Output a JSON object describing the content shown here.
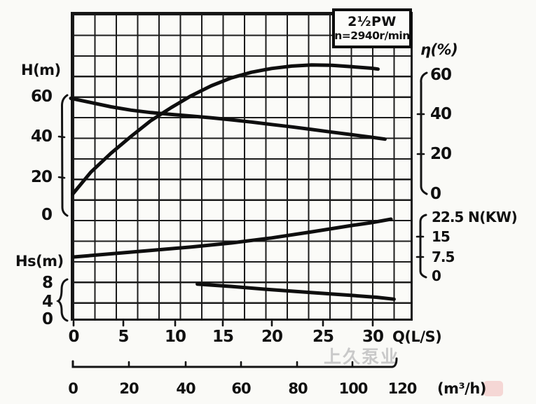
{
  "watermark": "上久泵业",
  "colors": {
    "ink": "#111111",
    "paper": "#fafaf7",
    "watermark_gray": "#c9c9c9"
  },
  "chart_data": {
    "type": "line",
    "title": "2½PW",
    "subtitle": "n=2940r/min",
    "grid": true,
    "x_axis": {
      "label": "Q(L/S)",
      "ticks": [
        0,
        5,
        10,
        15,
        20,
        25,
        30
      ],
      "range": [
        0,
        32
      ]
    },
    "x_axis_secondary": {
      "label": "(m³/h)",
      "ticks": [
        0,
        20,
        40,
        60,
        80,
        100,
        120
      ],
      "range": [
        0,
        120
      ]
    },
    "y_axes": [
      {
        "id": "H",
        "label": "H(m)",
        "side": "left",
        "ticks": [
          60,
          40,
          20,
          0
        ],
        "range": [
          0,
          60
        ]
      },
      {
        "id": "eta",
        "label": "η(%)",
        "side": "right",
        "ticks": [
          60,
          40,
          20,
          0
        ],
        "range": [
          0,
          60
        ]
      },
      {
        "id": "N",
        "label": "N(KW)",
        "side": "right",
        "ticks": [
          22.5,
          15,
          7.5,
          0
        ],
        "range": [
          0,
          22.5
        ]
      },
      {
        "id": "Hs",
        "label": "Hs(m)",
        "side": "left",
        "ticks": [
          8,
          4,
          0
        ],
        "range": [
          0,
          8
        ]
      }
    ],
    "series": [
      {
        "name": "head-curve-H-Q",
        "axis": "H",
        "points": [
          [
            0,
            59
          ],
          [
            2,
            56.9
          ],
          [
            4,
            54.8
          ],
          [
            6,
            53.1
          ],
          [
            8,
            51.9
          ],
          [
            10,
            51
          ],
          [
            12,
            50.2
          ],
          [
            14,
            49.3
          ],
          [
            16,
            48.3
          ],
          [
            18,
            47.2
          ],
          [
            20,
            46
          ],
          [
            22,
            44.8
          ],
          [
            24,
            43.5
          ],
          [
            26,
            42.2
          ],
          [
            28,
            40.9
          ],
          [
            30,
            39.6
          ],
          [
            31.3,
            38.7
          ]
        ]
      },
      {
        "name": "efficiency-curve-eta-Q",
        "axis": "eta",
        "points": [
          [
            0.2,
            0
          ],
          [
            2,
            11
          ],
          [
            4,
            20.5
          ],
          [
            6,
            29
          ],
          [
            8,
            37
          ],
          [
            10,
            43.5
          ],
          [
            12,
            49.5
          ],
          [
            14,
            54.5
          ],
          [
            16,
            58.5
          ],
          [
            18,
            61.3
          ],
          [
            20,
            63.2
          ],
          [
            22,
            64.4
          ],
          [
            24,
            65
          ],
          [
            26,
            64.8
          ],
          [
            28,
            64.1
          ],
          [
            30,
            63.3
          ],
          [
            30.6,
            62.9
          ]
        ]
      },
      {
        "name": "power-curve-N-Q",
        "axis": "N",
        "points": [
          [
            0.3,
            7.4
          ],
          [
            4,
            8.6
          ],
          [
            8,
            9.9
          ],
          [
            12,
            11.2
          ],
          [
            16,
            12.7
          ],
          [
            20,
            14.6
          ],
          [
            24,
            16.9
          ],
          [
            28,
            19.3
          ],
          [
            30,
            20.4
          ],
          [
            31.9,
            21.7
          ]
        ]
      },
      {
        "name": "suction-curve-Hs-Q",
        "axis": "Hs",
        "points": [
          [
            12.6,
            7.6
          ],
          [
            16,
            7.1
          ],
          [
            20,
            6.4
          ],
          [
            24,
            5.8
          ],
          [
            28,
            5.2
          ],
          [
            30.5,
            4.8
          ],
          [
            32.2,
            4.4
          ]
        ]
      }
    ]
  }
}
